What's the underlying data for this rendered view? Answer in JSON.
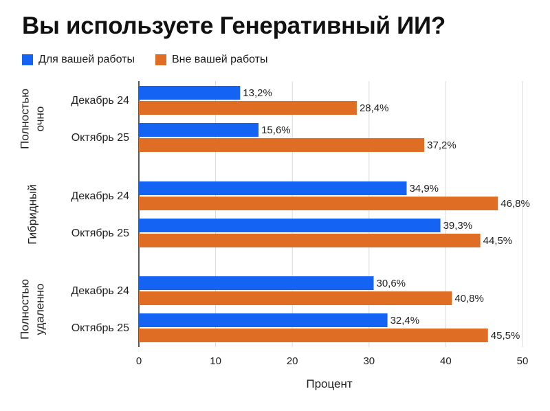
{
  "title": "Вы используете Генеративный ИИ?",
  "colors": {
    "work": "#1463f3",
    "outside": "#e06d24",
    "grid": "#d9d9d9",
    "axis": "#222222"
  },
  "chart_data": {
    "type": "bar",
    "orientation": "horizontal",
    "title": "Вы используете Генеративный ИИ?",
    "xlabel": "Процент",
    "ylabel": "",
    "xlim": [
      0,
      50
    ],
    "xticks": [
      "0",
      "10",
      "20",
      "30",
      "40",
      "50"
    ],
    "grid": true,
    "legend_position": "top-left",
    "series": [
      {
        "name": "Для вашей работы",
        "color": "#1463f3"
      },
      {
        "name": "Вне вашей работы",
        "color": "#e06d24"
      }
    ],
    "groups": [
      {
        "label": "Полностью очно",
        "label_lines": [
          "Полностью",
          "очно"
        ],
        "rows": [
          {
            "label": "Декабрь 24",
            "values": [
              13.2,
              28.4
            ],
            "value_labels": [
              "13,2%",
              "28,4%"
            ]
          },
          {
            "label": "Октябрь 25",
            "values": [
              15.6,
              37.2
            ],
            "value_labels": [
              "15,6%",
              "37,2%"
            ]
          }
        ]
      },
      {
        "label": "Гибридный",
        "label_lines": [
          "Гибридный"
        ],
        "rows": [
          {
            "label": "Декабрь 24",
            "values": [
              34.9,
              46.8
            ],
            "value_labels": [
              "34,9%",
              "46,8%"
            ]
          },
          {
            "label": "Октябрь 25",
            "values": [
              39.3,
              44.5
            ],
            "value_labels": [
              "39,3%",
              "44,5%"
            ]
          }
        ]
      },
      {
        "label": "Полностью удаленно",
        "label_lines": [
          "Полностью",
          "удаленно"
        ],
        "rows": [
          {
            "label": "Декабрь 24",
            "values": [
              30.6,
              40.8
            ],
            "value_labels": [
              "30,6%",
              "40,8%"
            ]
          },
          {
            "label": "Октябрь 25",
            "values": [
              32.4,
              45.5
            ],
            "value_labels": [
              "32,4%",
              "45,5%"
            ]
          }
        ]
      }
    ]
  }
}
